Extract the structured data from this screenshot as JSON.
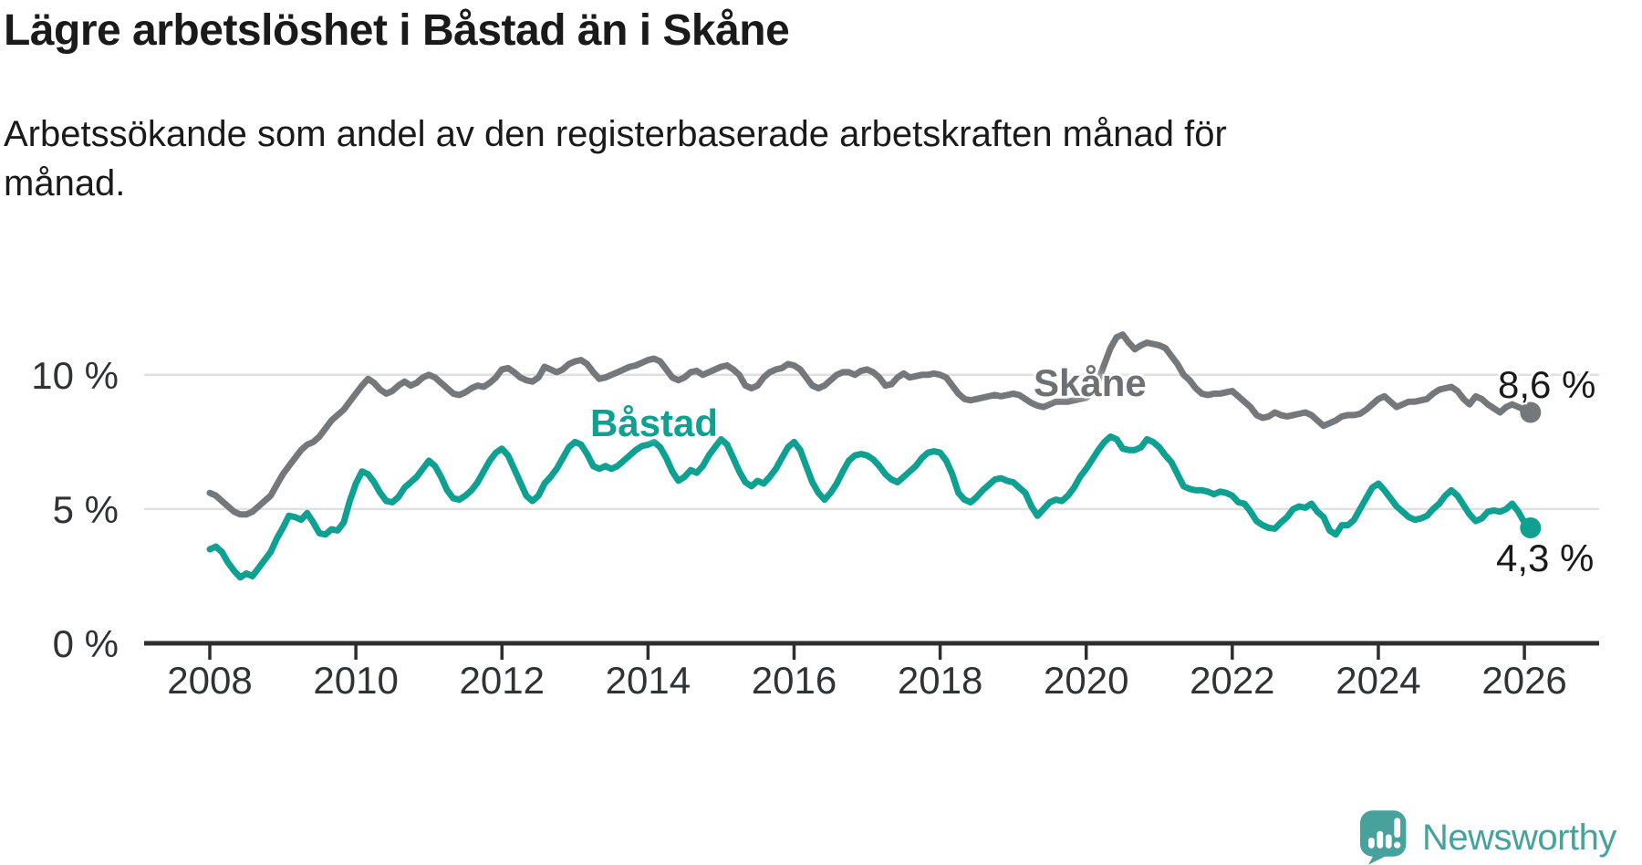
{
  "header": {
    "title": "Lägre arbetslöshet i Båstad än i Skåne",
    "subtitle": "Arbetssökande som andel av den registerbaserade arbetskraften månad för månad."
  },
  "series_labels": {
    "skane": "Skåne",
    "bastad": "Båstad"
  },
  "annotations": {
    "skane_end_value": "8,6 %",
    "bastad_end_value": "4,3 %"
  },
  "branding": {
    "name": "Newsworthy"
  },
  "colors": {
    "skane": "#75787B",
    "skane_label": "#6E7174",
    "bastad": "#0EA091",
    "axis": "#2E2E2E",
    "axis_text": "#303234",
    "grid": "#E1E1E1",
    "text": "#1A1A1A",
    "brand": "#46A29B",
    "background": "#FFFFFF"
  },
  "chart_data": {
    "type": "line",
    "title": "Lägre arbetslöshet i Båstad än i Skåne",
    "subtitle": "Arbetssökande som andel av den registerbaserade arbetskraften månad för månad.",
    "x_unit": "month",
    "x_start": "2008-01",
    "x_end": "2026-02",
    "xlabel": "",
    "ylabel": "",
    "ylim": [
      0,
      12.3
    ],
    "grid": "horizontal",
    "legend_position": "inline-labels",
    "x_tick_years": [
      2008,
      2010,
      2012,
      2014,
      2016,
      2018,
      2020,
      2022,
      2024,
      2026
    ],
    "y_ticks": [
      {
        "value": 10,
        "label": "10 %"
      },
      {
        "value": 5,
        "label": "5 %"
      },
      {
        "value": 0,
        "label": "0 %"
      }
    ],
    "series": [
      {
        "id": "skane",
        "name": "Skåne",
        "color": "#75787B",
        "end_label": "8,6 %",
        "end_value": 8.6,
        "values": [
          5.6,
          5.5,
          5.3,
          5.1,
          4.9,
          4.8,
          4.8,
          4.9,
          5.1,
          5.3,
          5.5,
          5.9,
          6.3,
          6.6,
          6.9,
          7.2,
          7.4,
          7.5,
          7.7,
          8.0,
          8.3,
          8.5,
          8.7,
          9.0,
          9.3,
          9.6,
          9.85,
          9.7,
          9.45,
          9.3,
          9.4,
          9.6,
          9.75,
          9.6,
          9.7,
          9.9,
          10.0,
          9.9,
          9.7,
          9.5,
          9.3,
          9.25,
          9.35,
          9.5,
          9.6,
          9.55,
          9.7,
          9.9,
          10.2,
          10.25,
          10.1,
          9.9,
          9.8,
          9.75,
          9.9,
          10.3,
          10.2,
          10.1,
          10.2,
          10.4,
          10.5,
          10.55,
          10.4,
          10.1,
          9.85,
          9.9,
          10.0,
          10.1,
          10.2,
          10.3,
          10.35,
          10.45,
          10.55,
          10.6,
          10.5,
          10.2,
          9.9,
          9.8,
          9.9,
          10.1,
          10.15,
          10.0,
          10.1,
          10.2,
          10.3,
          10.35,
          10.2,
          10.0,
          9.6,
          9.5,
          9.6,
          9.9,
          10.1,
          10.2,
          10.25,
          10.4,
          10.35,
          10.2,
          9.9,
          9.6,
          9.5,
          9.6,
          9.8,
          10.0,
          10.1,
          10.1,
          10.0,
          10.15,
          10.2,
          10.1,
          9.9,
          9.6,
          9.65,
          9.9,
          10.05,
          9.9,
          9.95,
          10.0,
          10.0,
          10.05,
          10.0,
          9.9,
          9.6,
          9.3,
          9.1,
          9.05,
          9.1,
          9.15,
          9.2,
          9.25,
          9.2,
          9.25,
          9.3,
          9.25,
          9.1,
          8.95,
          8.85,
          8.8,
          8.9,
          9.0,
          9.0,
          9.0,
          9.05,
          9.1,
          9.15,
          9.3,
          9.8,
          10.4,
          11.0,
          11.4,
          11.5,
          11.2,
          10.95,
          11.1,
          11.2,
          11.15,
          11.1,
          11.0,
          10.7,
          10.4,
          10.0,
          9.8,
          9.5,
          9.3,
          9.25,
          9.3,
          9.3,
          9.35,
          9.4,
          9.2,
          9.0,
          8.8,
          8.5,
          8.4,
          8.45,
          8.6,
          8.5,
          8.45,
          8.5,
          8.55,
          8.6,
          8.5,
          8.3,
          8.1,
          8.2,
          8.3,
          8.45,
          8.5,
          8.5,
          8.55,
          8.7,
          8.9,
          9.1,
          9.2,
          9.0,
          8.8,
          8.9,
          9.0,
          9.0,
          9.05,
          9.1,
          9.3,
          9.45,
          9.5,
          9.55,
          9.4,
          9.1,
          8.9,
          9.2,
          9.1,
          8.9,
          8.75,
          8.6,
          8.8,
          8.9,
          8.8,
          8.7,
          8.6
        ]
      },
      {
        "id": "bastad",
        "name": "Båstad",
        "color": "#0EA091",
        "end_label": "4,3 %",
        "end_value": 4.3,
        "values": [
          3.5,
          3.6,
          3.4,
          3.0,
          2.7,
          2.45,
          2.6,
          2.5,
          2.8,
          3.1,
          3.4,
          3.9,
          4.3,
          4.75,
          4.7,
          4.6,
          4.85,
          4.5,
          4.1,
          4.05,
          4.25,
          4.2,
          4.5,
          5.3,
          5.95,
          6.4,
          6.3,
          6.0,
          5.6,
          5.3,
          5.25,
          5.45,
          5.8,
          6.0,
          6.2,
          6.5,
          6.8,
          6.6,
          6.2,
          5.7,
          5.4,
          5.35,
          5.5,
          5.7,
          6.0,
          6.4,
          6.8,
          7.1,
          7.25,
          7.0,
          6.5,
          6.0,
          5.5,
          5.3,
          5.5,
          5.95,
          6.2,
          6.5,
          6.9,
          7.3,
          7.5,
          7.4,
          7.05,
          6.6,
          6.5,
          6.6,
          6.5,
          6.6,
          6.8,
          7.0,
          7.2,
          7.35,
          7.4,
          7.5,
          7.3,
          6.9,
          6.4,
          6.05,
          6.2,
          6.45,
          6.35,
          6.6,
          7.0,
          7.3,
          7.6,
          7.4,
          6.9,
          6.4,
          6.0,
          5.85,
          6.05,
          5.95,
          6.2,
          6.5,
          6.9,
          7.3,
          7.5,
          7.2,
          6.6,
          6.0,
          5.6,
          5.35,
          5.6,
          5.95,
          6.4,
          6.8,
          7.0,
          7.05,
          7.0,
          6.85,
          6.6,
          6.3,
          6.1,
          6.0,
          6.2,
          6.4,
          6.6,
          6.9,
          7.1,
          7.15,
          7.1,
          6.8,
          6.3,
          5.6,
          5.35,
          5.25,
          5.45,
          5.7,
          5.9,
          6.1,
          6.15,
          6.05,
          6.0,
          5.8,
          5.6,
          5.1,
          4.75,
          5.0,
          5.25,
          5.35,
          5.3,
          5.5,
          5.8,
          6.2,
          6.5,
          6.85,
          7.2,
          7.5,
          7.7,
          7.6,
          7.25,
          7.2,
          7.2,
          7.3,
          7.6,
          7.5,
          7.3,
          7.0,
          6.75,
          6.3,
          5.85,
          5.75,
          5.7,
          5.7,
          5.65,
          5.55,
          5.65,
          5.6,
          5.5,
          5.25,
          5.2,
          4.9,
          4.55,
          4.4,
          4.3,
          4.27,
          4.5,
          4.7,
          5.0,
          5.1,
          5.05,
          5.2,
          4.9,
          4.7,
          4.2,
          4.05,
          4.4,
          4.4,
          4.6,
          5.0,
          5.4,
          5.8,
          5.95,
          5.7,
          5.4,
          5.1,
          4.9,
          4.7,
          4.6,
          4.65,
          4.75,
          5.0,
          5.2,
          5.5,
          5.7,
          5.5,
          5.15,
          4.8,
          4.55,
          4.65,
          4.9,
          4.95,
          4.9,
          5.0,
          5.2,
          4.9,
          4.5,
          4.3
        ]
      }
    ]
  }
}
